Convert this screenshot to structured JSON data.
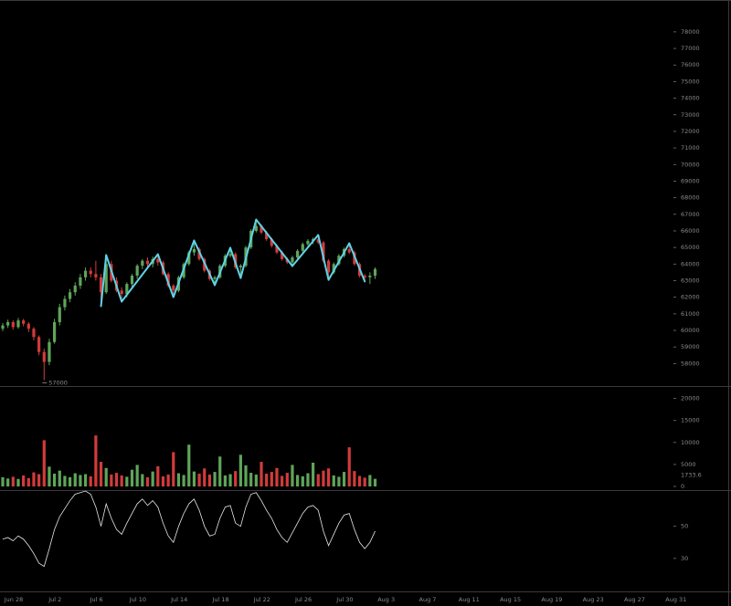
{
  "chart_data": [
    {
      "type": "candlestick",
      "open": [
        60100,
        60300,
        60500,
        60200,
        60600,
        60400,
        60100,
        59600,
        58700,
        58100,
        59300,
        60500,
        61400,
        61900,
        62300,
        62700,
        63200,
        63600,
        63400,
        63200,
        62300,
        64000,
        63000,
        62400,
        62200,
        62800,
        63300,
        63900,
        64200,
        64000,
        64300,
        64100,
        63400,
        62700,
        62400,
        63200,
        64000,
        64700,
        64900,
        64300,
        63600,
        63100,
        63200,
        63900,
        64500,
        64600,
        63800,
        63900,
        65000,
        66000,
        66300,
        65900,
        65500,
        65100,
        64700,
        64300,
        64100,
        64400,
        64800,
        65200,
        65400,
        65500,
        65300,
        64200,
        63500,
        64000,
        64500,
        64900,
        64700,
        64000,
        63300,
        63200,
        63300
      ],
      "high": [
        60450,
        60650,
        60600,
        60750,
        60700,
        60500,
        60200,
        59700,
        58900,
        59500,
        60700,
        61600,
        62100,
        62500,
        62900,
        63400,
        63800,
        63800,
        64200,
        63400,
        64540,
        64200,
        63200,
        62600,
        62900,
        63400,
        64000,
        64300,
        64400,
        64450,
        64590,
        64200,
        63500,
        62800,
        63300,
        64100,
        64800,
        65420,
        65000,
        64400,
        63700,
        63300,
        64000,
        64600,
        64980,
        64700,
        64000,
        65100,
        66100,
        66680,
        66400,
        66000,
        65600,
        65200,
        64800,
        64400,
        64500,
        64900,
        65300,
        65500,
        65600,
        65750,
        65400,
        64300,
        64100,
        64600,
        65000,
        65250,
        64800,
        64100,
        63400,
        63500,
        63800
      ],
      "low": [
        59950,
        60150,
        60050,
        60100,
        60250,
        59900,
        59400,
        58500,
        57000,
        57900,
        59200,
        60300,
        61200,
        61700,
        62100,
        62500,
        63000,
        63200,
        63000,
        61460,
        62200,
        62900,
        62300,
        61740,
        62000,
        62600,
        63100,
        63700,
        63800,
        63800,
        63900,
        63300,
        62600,
        62010,
        62300,
        63100,
        63900,
        64500,
        64200,
        63500,
        63000,
        62730,
        63100,
        63800,
        64400,
        63700,
        63160,
        63800,
        64900,
        65900,
        65800,
        65400,
        65000,
        64600,
        64200,
        64000,
        63880,
        64300,
        64700,
        65100,
        65200,
        65200,
        64100,
        63050,
        63400,
        63900,
        64400,
        64600,
        63900,
        63200,
        62950,
        62800,
        63100
      ],
      "close": [
        60300,
        60500,
        60200,
        60600,
        60400,
        60100,
        59600,
        58700,
        58100,
        59300,
        60500,
        61400,
        61900,
        62300,
        62700,
        63200,
        63600,
        63400,
        63200,
        62300,
        64000,
        63000,
        62400,
        62200,
        62800,
        63300,
        63900,
        64200,
        64000,
        64300,
        64100,
        63400,
        62700,
        62400,
        63200,
        64000,
        64700,
        64900,
        64300,
        63600,
        63100,
        63200,
        63900,
        64500,
        64600,
        63800,
        63900,
        65000,
        66000,
        66300,
        65900,
        65500,
        65100,
        64700,
        64300,
        64100,
        64400,
        64800,
        65200,
        65400,
        65500,
        65300,
        64200,
        63500,
        64000,
        64500,
        64900,
        64700,
        64000,
        63300,
        63200,
        63300,
        63700
      ],
      "up_color": "#5fa55a",
      "down_color": "#d23b3b",
      "zigzag": {
        "color": "#5fd3e8",
        "values": [
          null,
          null,
          null,
          null,
          null,
          null,
          null,
          null,
          null,
          null,
          null,
          null,
          null,
          null,
          null,
          null,
          null,
          null,
          null,
          61460,
          64540,
          null,
          null,
          61740,
          null,
          null,
          null,
          null,
          null,
          null,
          64590,
          null,
          null,
          62010,
          null,
          null,
          null,
          65420,
          null,
          null,
          null,
          62730,
          null,
          null,
          64980,
          null,
          63160,
          null,
          null,
          66680,
          null,
          null,
          null,
          null,
          null,
          null,
          63880,
          null,
          null,
          null,
          null,
          65750,
          null,
          63050,
          null,
          null,
          null,
          65250,
          null,
          null,
          62950,
          null,
          null
        ]
      },
      "ylim": [
        56700,
        79700
      ],
      "yticks": [
        58000,
        59000,
        60000,
        61000,
        62000,
        63000,
        64000,
        65000,
        66000,
        67000,
        68000,
        69000,
        70000,
        71000,
        72000,
        73000,
        74000,
        75000,
        76000,
        77000,
        78000
      ]
    },
    {
      "type": "bar",
      "values": [
        2100,
        1800,
        2200,
        1700,
        2500,
        1900,
        3200,
        2800,
        10500,
        4500,
        2900,
        3600,
        2400,
        2100,
        3000,
        2600,
        2800,
        2300,
        11600,
        5600,
        4200,
        2700,
        3100,
        2500,
        2200,
        3800,
        4900,
        2800,
        2100,
        3400,
        4600,
        2300,
        2700,
        7800,
        3000,
        2600,
        9500,
        3400,
        2900,
        4100,
        2700,
        3300,
        6800,
        2500,
        2800,
        3500,
        7200,
        4800,
        3100,
        2700,
        5600,
        2900,
        3300,
        4200,
        2400,
        3100,
        4900,
        2600,
        2300,
        3000,
        5400,
        2800,
        3600,
        4100,
        2500,
        2200,
        3300,
        8900,
        3500,
        2400,
        2000,
        2600,
        1733.6
      ],
      "ylim": [
        0,
        22000
      ],
      "yticks": [
        0,
        5000,
        10000,
        15000,
        20000
      ]
    },
    {
      "type": "line",
      "values": [
        42,
        43,
        41,
        44,
        42,
        38,
        33,
        27,
        25,
        36,
        48,
        56,
        61,
        66,
        70,
        71,
        72,
        70,
        62,
        50,
        64,
        55,
        48,
        45,
        52,
        58,
        64,
        67,
        63,
        66,
        62,
        52,
        44,
        40,
        50,
        58,
        64,
        67,
        60,
        50,
        44,
        45,
        55,
        62,
        63,
        52,
        50,
        62,
        70,
        71,
        66,
        60,
        55,
        48,
        43,
        40,
        46,
        52,
        58,
        62,
        63,
        60,
        47,
        38,
        45,
        52,
        57,
        58,
        48,
        40,
        36,
        40,
        47
      ],
      "color": "#e8e8e8",
      "ylim": [
        10,
        72
      ],
      "yticks": [
        30,
        50
      ],
      "x_labels": [
        "Jun 28",
        "Jul 2",
        "Jul 6",
        "Jul 10",
        "Jul 14",
        "Jul 18",
        "Jul 22",
        "Jul 26",
        "Jul 30",
        "Aug 3",
        "Aug 7",
        "Aug 11",
        "Aug 15",
        "Aug 19",
        "Aug 23",
        "Aug 27",
        "Aug 31"
      ]
    }
  ]
}
